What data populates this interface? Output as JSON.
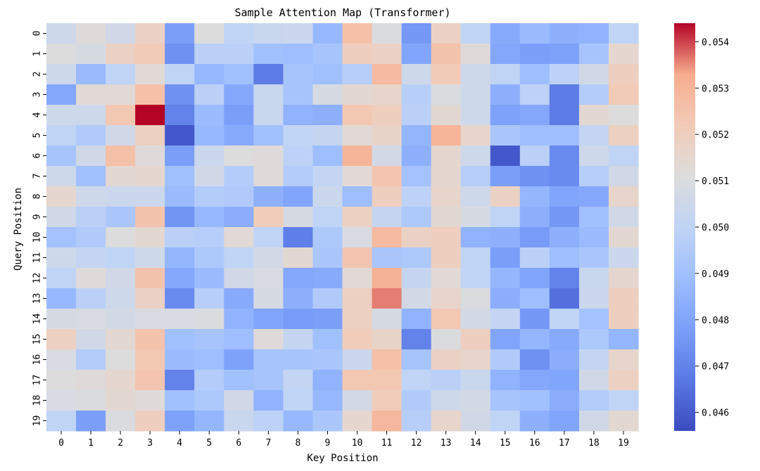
{
  "chart_data": {
    "type": "heatmap",
    "title": "Sample Attention Map (Transformer)",
    "xlabel": "Key Position",
    "ylabel": "Query Position",
    "x_categories": [
      "0",
      "1",
      "2",
      "3",
      "4",
      "5",
      "6",
      "7",
      "8",
      "9",
      "10",
      "11",
      "12",
      "13",
      "14",
      "15",
      "16",
      "17",
      "18",
      "19"
    ],
    "y_categories": [
      "0",
      "1",
      "2",
      "3",
      "4",
      "5",
      "6",
      "7",
      "8",
      "9",
      "10",
      "11",
      "12",
      "13",
      "14",
      "15",
      "16",
      "17",
      "18",
      "19"
    ],
    "colormap": "coolwarm",
    "colorbar": {
      "vmin": 0.0456,
      "vmax": 0.0544,
      "ticks": [
        0.046,
        0.047,
        0.048,
        0.049,
        0.05,
        0.051,
        0.052,
        0.053,
        0.054
      ],
      "tick_labels": [
        "0.046",
        "0.047",
        "0.048",
        "0.049",
        "0.050",
        "0.051",
        "0.052",
        "0.053",
        "0.054"
      ]
    },
    "values": [
      [
        0.0505,
        0.0512,
        0.0506,
        0.0518,
        0.0478,
        0.0511,
        0.05,
        0.0503,
        0.0504,
        0.0487,
        0.0526,
        0.051,
        0.0476,
        0.0518,
        0.05,
        0.0482,
        0.0488,
        0.0484,
        0.0485,
        0.05
      ],
      [
        0.0511,
        0.0508,
        0.0518,
        0.0522,
        0.0474,
        0.0498,
        0.0498,
        0.049,
        0.0489,
        0.0492,
        0.052,
        0.0518,
        0.048,
        0.0525,
        0.0512,
        0.0481,
        0.0478,
        0.0479,
        0.0492,
        0.0515
      ],
      [
        0.0505,
        0.0488,
        0.05,
        0.0513,
        0.05,
        0.0487,
        0.049,
        0.0468,
        0.0492,
        0.049,
        0.0497,
        0.0528,
        0.0505,
        0.0522,
        0.0505,
        0.05,
        0.0489,
        0.0499,
        0.0506,
        0.052
      ],
      [
        0.0481,
        0.0513,
        0.0513,
        0.0526,
        0.0474,
        0.0498,
        0.0481,
        0.0503,
        0.0492,
        0.0508,
        0.0514,
        0.0516,
        0.0497,
        0.051,
        0.0505,
        0.0484,
        0.0499,
        0.0468,
        0.0496,
        0.0522
      ],
      [
        0.0505,
        0.0505,
        0.0523,
        0.0544,
        0.047,
        0.0488,
        0.0478,
        0.0503,
        0.0485,
        0.0484,
        0.0523,
        0.052,
        0.0498,
        0.0514,
        0.0505,
        0.0479,
        0.0481,
        0.0468,
        0.0514,
        0.0511
      ],
      [
        0.05,
        0.0495,
        0.0506,
        0.0519,
        0.0459,
        0.0487,
        0.0482,
        0.049,
        0.05,
        0.0502,
        0.0513,
        0.0517,
        0.0486,
        0.053,
        0.0516,
        0.0493,
        0.0489,
        0.0489,
        0.0501,
        0.0519
      ],
      [
        0.0492,
        0.0506,
        0.0526,
        0.0512,
        0.0478,
        0.0504,
        0.0511,
        0.0512,
        0.0499,
        0.0489,
        0.053,
        0.0507,
        0.0484,
        0.0515,
        0.0505,
        0.0459,
        0.0498,
        0.0472,
        0.0505,
        0.05
      ],
      [
        0.0505,
        0.049,
        0.0514,
        0.0515,
        0.049,
        0.0506,
        0.0496,
        0.0512,
        0.0496,
        0.0501,
        0.0513,
        0.0524,
        0.0491,
        0.0515,
        0.0497,
        0.0478,
        0.0474,
        0.0472,
        0.0497,
        0.0506
      ],
      [
        0.0515,
        0.0505,
        0.0504,
        0.0504,
        0.0488,
        0.0496,
        0.0495,
        0.0484,
        0.048,
        0.0504,
        0.0489,
        0.052,
        0.0499,
        0.0516,
        0.0505,
        0.0518,
        0.0486,
        0.048,
        0.0481,
        0.0516
      ],
      [
        0.0506,
        0.0498,
        0.0493,
        0.0525,
        0.0475,
        0.0487,
        0.0483,
        0.0521,
        0.0508,
        0.05,
        0.0519,
        0.0502,
        0.0494,
        0.0514,
        0.0508,
        0.05,
        0.0484,
        0.0476,
        0.049,
        0.0506
      ],
      [
        0.0491,
        0.0495,
        0.0511,
        0.0514,
        0.0498,
        0.0497,
        0.0513,
        0.05,
        0.0469,
        0.0494,
        0.0509,
        0.0528,
        0.0518,
        0.052,
        0.0485,
        0.0484,
        0.0477,
        0.0484,
        0.0488,
        0.0514
      ],
      [
        0.0505,
        0.0501,
        0.05,
        0.0505,
        0.0486,
        0.0494,
        0.05,
        0.0507,
        0.0514,
        0.0493,
        0.0524,
        0.0493,
        0.0494,
        0.052,
        0.05,
        0.0478,
        0.0498,
        0.0489,
        0.0493,
        0.0504
      ],
      [
        0.05,
        0.0512,
        0.0506,
        0.0525,
        0.0481,
        0.0488,
        0.0506,
        0.0509,
        0.0481,
        0.0482,
        0.0513,
        0.0531,
        0.0502,
        0.0513,
        0.05,
        0.0486,
        0.048,
        0.047,
        0.0503,
        0.0515
      ],
      [
        0.0487,
        0.0498,
        0.0505,
        0.0518,
        0.0472,
        0.0497,
        0.0482,
        0.0508,
        0.0484,
        0.0495,
        0.0519,
        0.0536,
        0.0507,
        0.0516,
        0.051,
        0.0483,
        0.0489,
        0.0465,
        0.0504,
        0.052
      ],
      [
        0.0508,
        0.0509,
        0.0507,
        0.0509,
        0.0509,
        0.051,
        0.0485,
        0.048,
        0.0477,
        0.0478,
        0.0519,
        0.0508,
        0.0485,
        0.0523,
        0.0507,
        0.0501,
        0.0476,
        0.05,
        0.0491,
        0.052
      ],
      [
        0.0519,
        0.0506,
        0.0514,
        0.0525,
        0.049,
        0.0492,
        0.0489,
        0.0512,
        0.0502,
        0.049,
        0.0521,
        0.0517,
        0.047,
        0.051,
        0.052,
        0.048,
        0.0486,
        0.0482,
        0.0494,
        0.0486
      ],
      [
        0.0509,
        0.0496,
        0.0511,
        0.0523,
        0.0488,
        0.0489,
        0.0479,
        0.0492,
        0.0492,
        0.0493,
        0.0504,
        0.0526,
        0.0492,
        0.0518,
        0.0516,
        0.0495,
        0.0474,
        0.0483,
        0.0501,
        0.0516
      ],
      [
        0.0511,
        0.0512,
        0.0515,
        0.0524,
        0.047,
        0.0496,
        0.049,
        0.0492,
        0.0501,
        0.0485,
        0.0523,
        0.0523,
        0.05,
        0.0498,
        0.0503,
        0.0485,
        0.0481,
        0.048,
        0.0506,
        0.0519
      ],
      [
        0.0509,
        0.051,
        0.0514,
        0.0512,
        0.049,
        0.0494,
        0.0506,
        0.0485,
        0.05,
        0.0487,
        0.0507,
        0.0521,
        0.0495,
        0.0505,
        0.0507,
        0.0492,
        0.049,
        0.0483,
        0.0496,
        0.05
      ],
      [
        0.05,
        0.0478,
        0.051,
        0.052,
        0.0479,
        0.0486,
        0.0503,
        0.0499,
        0.0487,
        0.0493,
        0.0515,
        0.0529,
        0.0497,
        0.0516,
        0.0506,
        0.05,
        0.0484,
        0.048,
        0.0506,
        0.0514
      ]
    ]
  }
}
